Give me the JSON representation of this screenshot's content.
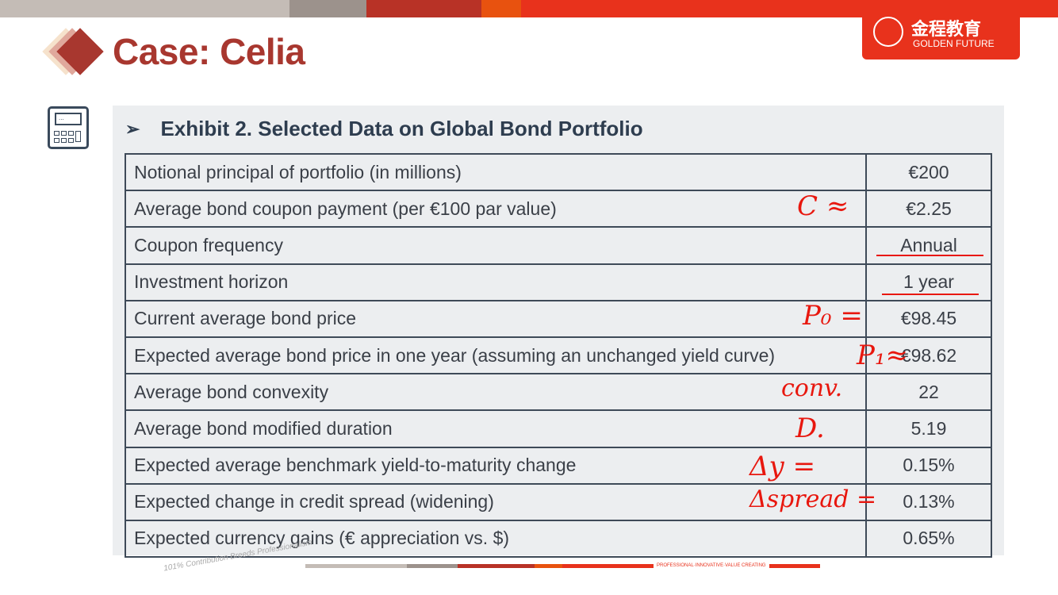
{
  "header": {
    "title": "Case: Celia",
    "logo_cn": "金程教育",
    "logo_en": "GOLDEN FUTURE",
    "logo_seal": "G"
  },
  "exhibit": {
    "title": "Exhibit 2. Selected Data on Global Bond Portfolio",
    "rows": [
      {
        "label": "Notional principal of portfolio (in millions)",
        "value": "€200"
      },
      {
        "label": "Average bond coupon payment (per €100 par value)",
        "value": "€2.25"
      },
      {
        "label": "Coupon frequency",
        "value": "Annual"
      },
      {
        "label": "Investment horizon",
        "value": "1 year"
      },
      {
        "label": "Current average bond price",
        "value": "€98.45"
      },
      {
        "label": "Expected average bond price in one year  (assuming an unchanged yield curve)",
        "value": "€98.62"
      },
      {
        "label": "Average bond convexity",
        "value": "22"
      },
      {
        "label": "Average bond modified duration",
        "value": "5.19"
      },
      {
        "label": "Expected average benchmark yield-to-maturity change",
        "value": "0.15%"
      },
      {
        "label": "Expected change in credit spread (widening)",
        "value": "0.13%"
      },
      {
        "label": "Expected currency gains (€ appreciation vs. $)",
        "value": "0.65%"
      }
    ]
  },
  "annotations": [
    "C ≈",
    "P₀ =",
    "P₁≈",
    "conv.",
    "D.",
    "Δy =",
    "Δspread ="
  ],
  "footer": {
    "tagline": "PROFESSIONAL·INNOVATIVE·VALUE CREATING",
    "watermark": "101% Contribution Breeds Professionalism"
  },
  "colors": {
    "accent": "#a8372f",
    "brand": "#e8321c",
    "annotation": "#e8170e"
  }
}
